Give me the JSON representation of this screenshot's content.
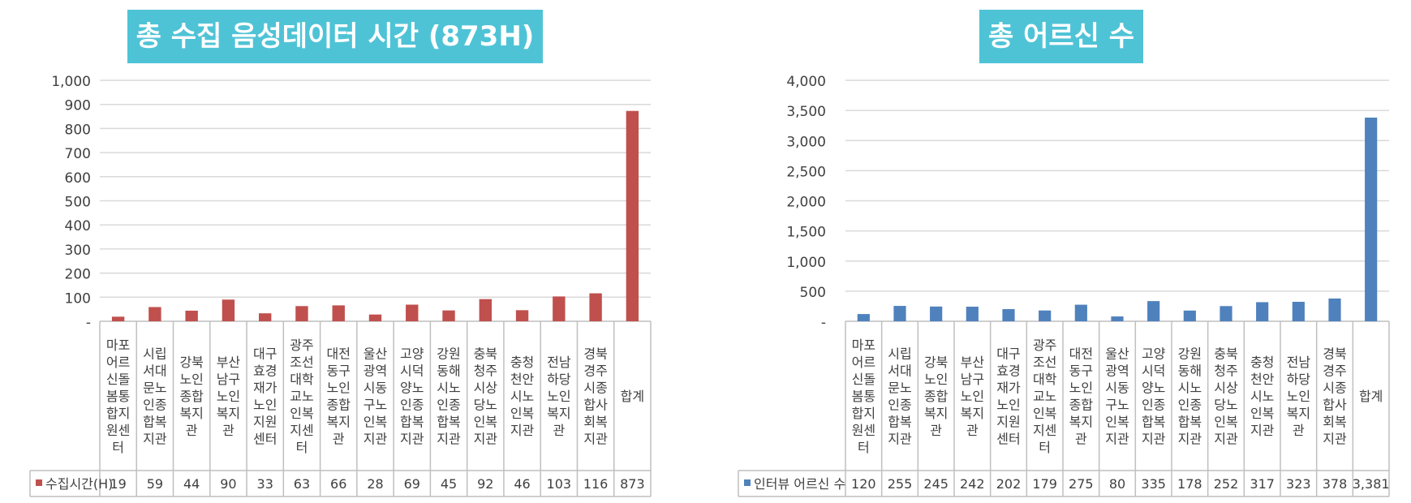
{
  "chart_data": [
    {
      "type": "bar",
      "title": "총 수집 음성데이터 시간 (873H)",
      "categories": [
        [
          "마포",
          "어르",
          "신돌",
          "봄통",
          "합지",
          "원센",
          "터"
        ],
        [
          "시립",
          "서대",
          "문노",
          "인종",
          "합복",
          "지관"
        ],
        [
          "강북",
          "노인",
          "종합",
          "복지",
          "관"
        ],
        [
          "부산",
          "남구",
          "노인",
          "복지",
          "관"
        ],
        [
          "대구",
          "효경",
          "재가",
          "노인",
          "지원",
          "센터"
        ],
        [
          "광주",
          "조선",
          "대학",
          "교노",
          "인복",
          "지센",
          "터"
        ],
        [
          "대전",
          "동구",
          "노인",
          "종합",
          "복지",
          "관"
        ],
        [
          "울산",
          "광역",
          "시동",
          "구노",
          "인복",
          "지관"
        ],
        [
          "고양",
          "시덕",
          "양노",
          "인종",
          "합복",
          "지관"
        ],
        [
          "강원",
          "동해",
          "시노",
          "인종",
          "합복",
          "지관"
        ],
        [
          "충북",
          "청주",
          "시상",
          "당노",
          "인복",
          "지관"
        ],
        [
          "충청",
          "천안",
          "시노",
          "인복",
          "지관"
        ],
        [
          "전남",
          "하당",
          "노인",
          "복지",
          "관"
        ],
        [
          "경북",
          "경주",
          "시종",
          "합사",
          "회복",
          "지관"
        ],
        [
          "합계"
        ]
      ],
      "series": [
        {
          "name": "수집시간(H)",
          "color": "#c0504d",
          "values": [
            19,
            59,
            44,
            90,
            33,
            63,
            66,
            28,
            69,
            45,
            92,
            46,
            103,
            116,
            873
          ],
          "labels": [
            "19",
            "59",
            "44",
            "90",
            "33",
            "63",
            "66",
            "28",
            "69",
            "45",
            "92",
            "46",
            "103",
            "116",
            "873"
          ]
        }
      ],
      "ylim": [
        0,
        1000
      ],
      "yticks": [
        "-",
        "100",
        "200",
        "300",
        "400",
        "500",
        "600",
        "700",
        "800",
        "900",
        "1,000"
      ],
      "grid": true,
      "legend": "data-table"
    },
    {
      "type": "bar",
      "title": "총 어르신 수",
      "categories": [
        [
          "마포",
          "어르",
          "신돌",
          "봄통",
          "합지",
          "원센",
          "터"
        ],
        [
          "시립",
          "서대",
          "문노",
          "인종",
          "합복",
          "지관"
        ],
        [
          "강북",
          "노인",
          "종합",
          "복지",
          "관"
        ],
        [
          "부산",
          "남구",
          "노인",
          "복지",
          "관"
        ],
        [
          "대구",
          "효경",
          "재가",
          "노인",
          "지원",
          "센터"
        ],
        [
          "광주",
          "조선",
          "대학",
          "교노",
          "인복",
          "지센",
          "터"
        ],
        [
          "대전",
          "동구",
          "노인",
          "종합",
          "복지",
          "관"
        ],
        [
          "울산",
          "광역",
          "시동",
          "구노",
          "인복",
          "지관"
        ],
        [
          "고양",
          "시덕",
          "양노",
          "인종",
          "합복",
          "지관"
        ],
        [
          "강원",
          "동해",
          "시노",
          "인종",
          "합복",
          "지관"
        ],
        [
          "충북",
          "청주",
          "시상",
          "당노",
          "인복",
          "지관"
        ],
        [
          "충청",
          "천안",
          "시노",
          "인복",
          "지관"
        ],
        [
          "전남",
          "하당",
          "노인",
          "복지",
          "관"
        ],
        [
          "경북",
          "경주",
          "시종",
          "합사",
          "회복",
          "지관"
        ],
        [
          "합계"
        ]
      ],
      "series": [
        {
          "name": "인터뷰 어르신 수",
          "color": "#4f81bd",
          "values": [
            120,
            255,
            245,
            242,
            202,
            179,
            275,
            80,
            335,
            178,
            252,
            317,
            323,
            378,
            3381
          ],
          "labels": [
            "120",
            "255",
            "245",
            "242",
            "202",
            "179",
            "275",
            "80",
            "335",
            "178",
            "252",
            "317",
            "323",
            "378",
            "3,381"
          ]
        }
      ],
      "ylim": [
        0,
        4000
      ],
      "yticks": [
        "-",
        "500",
        "1,000",
        "1,500",
        "2,000",
        "2,500",
        "3,000",
        "3,500",
        "4,000"
      ],
      "grid": true,
      "legend": "data-table"
    }
  ]
}
